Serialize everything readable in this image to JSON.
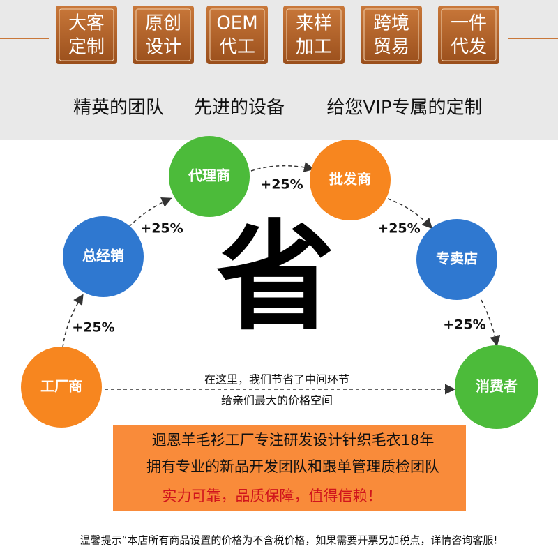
{
  "badges": [
    {
      "line1": "大客",
      "line2": "定制"
    },
    {
      "line1": "原创",
      "line2": "设计"
    },
    {
      "line1": "OEM",
      "line2": "代工"
    },
    {
      "line1": "来样",
      "line2": "加工"
    },
    {
      "line1": "跨境",
      "line2": "贸易"
    },
    {
      "line1": "一件",
      "line2": "代发"
    }
  ],
  "tagline": [
    "精英的团队",
    "先进的设备",
    "给您VIP专属的定制"
  ],
  "nodes": [
    {
      "label": "工厂商"
    },
    {
      "label": "总经销"
    },
    {
      "label": "代理商"
    },
    {
      "label": "批发商"
    },
    {
      "label": "专卖店"
    },
    {
      "label": "消费者"
    }
  ],
  "edges": [
    {
      "label": "+25%"
    },
    {
      "label": "+25%"
    },
    {
      "label": "+25%"
    },
    {
      "label": "+25%"
    },
    {
      "label": "+25%"
    }
  ],
  "center": "省",
  "direct_note": [
    "在这里，我们节省了中间环节",
    "给亲们最大的价格空间"
  ],
  "box_lines": [
    "迥恩羊毛衫工厂专注研发设计针织毛衣18年",
    "拥有专业的新品开发团队和跟单管理质检团队",
    "实力可靠，品质保障，值得信赖！"
  ],
  "footer": "温馨提示“本店所有商品设置的价格为不含税价格，如果需要开票另加税点，详情咨询客服!"
}
